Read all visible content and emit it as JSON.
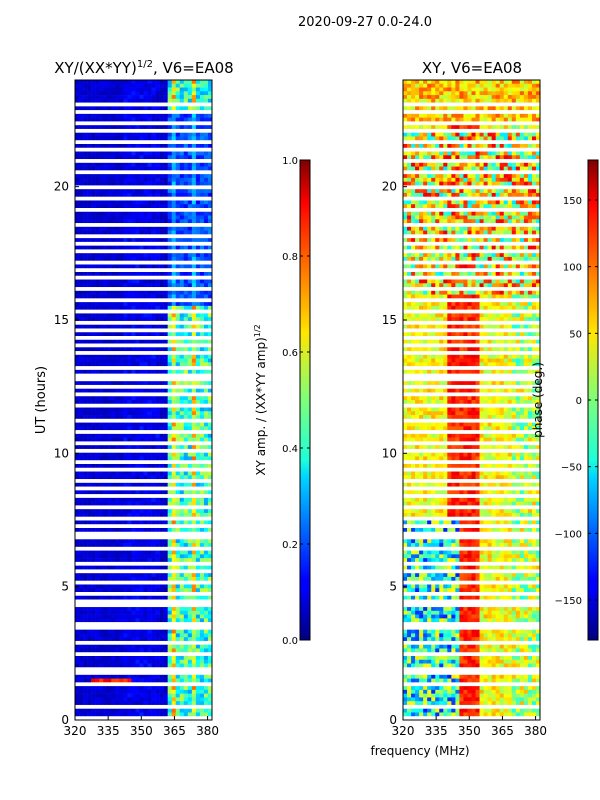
{
  "chart_data": [
    {
      "type": "heatmap",
      "title_main": "XY/(XX*YY)",
      "title_sup": "1/2",
      "title_rest": ", V6=EA08",
      "xlabel": "",
      "ylabel": "UT (hours)",
      "xlim": [
        320,
        382
      ],
      "ylim": [
        0,
        24
      ],
      "xticks": [
        320,
        335,
        350,
        365,
        380
      ],
      "yticks": [
        0,
        5,
        10,
        15,
        20
      ],
      "colorbar": {
        "label_main": "XY amp. / (XX*YY amp)",
        "label_sup": "1/2",
        "range": [
          0.0,
          1.0
        ],
        "ticks": [
          "0.0",
          "0.2",
          "0.4",
          "0.6",
          "0.8",
          "1.0"
        ],
        "tick_values": [
          0.0,
          0.2,
          0.4,
          0.6,
          0.8,
          1.0
        ],
        "cmap": "jet"
      }
    },
    {
      "type": "heatmap",
      "title": "XY, V6=EA08",
      "xlabel": "frequency (MHz)",
      "ylabel": "",
      "xlim": [
        320,
        382
      ],
      "ylim": [
        0,
        24
      ],
      "xticks": [
        320,
        335,
        350,
        365,
        380
      ],
      "yticks": [
        0,
        5,
        10,
        15,
        20
      ],
      "colorbar": {
        "label": "phase (deg.)",
        "range": [
          -180,
          180
        ],
        "ticks": [
          "−150",
          "−100",
          "−50",
          "0",
          "50",
          "100",
          "150"
        ],
        "tick_values": [
          -150,
          -100,
          -50,
          0,
          50,
          100,
          150
        ],
        "cmap": "jet"
      }
    }
  ],
  "suptitle": "2020-09-27 0.0-24.0",
  "colors": {
    "jet_dark_blue": "#00007f",
    "jet_dark_red": "#7f0000"
  }
}
